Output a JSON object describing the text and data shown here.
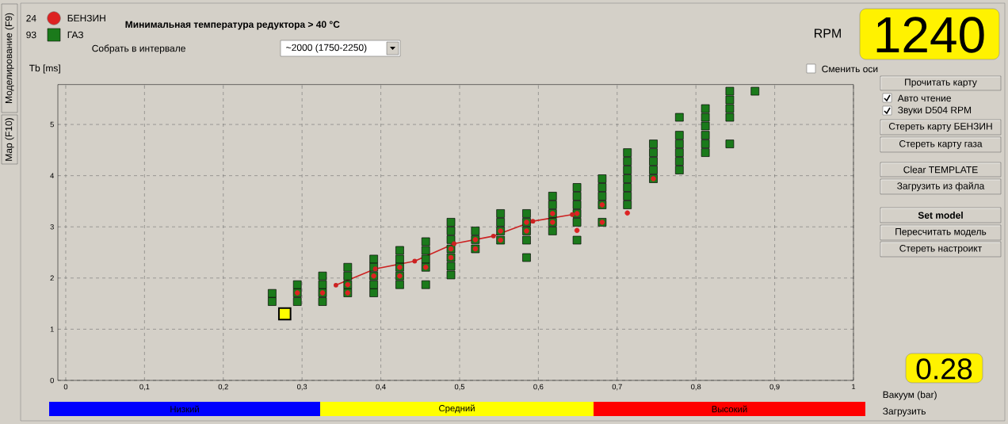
{
  "chart_data": {
    "type": "scatter",
    "title": "Минимальная температура редуктора > 40 °C",
    "ylabel": "Tb [ms]",
    "xlim": [
      -0.01,
      1.0
    ],
    "ylim": [
      0,
      5.78
    ],
    "xticks": [
      0,
      {
        "value": 0.1,
        "label": "0,1"
      },
      {
        "value": 0.2,
        "label": "0,2"
      },
      {
        "value": 0.3,
        "label": "0,3"
      },
      {
        "value": 0.4,
        "label": "0,4"
      },
      {
        "value": 0.5,
        "label": "0,5"
      },
      {
        "value": 0.6,
        "label": "0,6"
      },
      {
        "value": 0.7,
        "label": "0,7"
      },
      {
        "value": 0.8,
        "label": "0,8"
      },
      {
        "value": 0.9,
        "label": "0,9"
      },
      1
    ],
    "yticks": [
      0,
      1,
      2,
      3,
      4,
      5
    ],
    "grid": true,
    "legend": "top left",
    "series": [
      {
        "name": "БЕНЗИН",
        "marker": "circle",
        "color": "#dd2222",
        "x": [
          0.294,
          0.326,
          0.358,
          0.358,
          0.391,
          0.424,
          0.424,
          0.457,
          0.489,
          0.489,
          0.52,
          0.52,
          0.552,
          0.552,
          0.585,
          0.585,
          0.618,
          0.618,
          0.649,
          0.649,
          0.681,
          0.681,
          0.713,
          0.746
        ],
        "values": [
          1.71,
          1.71,
          1.87,
          1.71,
          2.04,
          2.21,
          2.04,
          2.21,
          2.57,
          2.4,
          2.75,
          2.57,
          2.92,
          2.74,
          3.09,
          2.92,
          3.26,
          3.09,
          3.26,
          2.93,
          3.43,
          3.09,
          3.27,
          3.94
        ]
      },
      {
        "name": "ГАЗ",
        "marker": "square",
        "color": "#1b7a1b",
        "x": [
          0.262,
          0.262,
          0.294,
          0.294,
          0.294,
          0.326,
          0.326,
          0.326,
          0.326,
          0.358,
          0.358,
          0.358,
          0.358,
          0.391,
          0.391,
          0.391,
          0.391,
          0.391,
          0.424,
          0.424,
          0.424,
          0.424,
          0.424,
          0.457,
          0.457,
          0.457,
          0.457,
          0.457,
          0.489,
          0.489,
          0.489,
          0.489,
          0.489,
          0.489,
          0.489,
          0.52,
          0.52,
          0.52,
          0.552,
          0.552,
          0.552,
          0.552,
          0.585,
          0.585,
          0.585,
          0.585,
          0.585,
          0.618,
          0.618,
          0.618,
          0.618,
          0.618,
          0.649,
          0.649,
          0.649,
          0.649,
          0.649,
          0.649,
          0.681,
          0.681,
          0.681,
          0.681,
          0.681,
          0.713,
          0.713,
          0.713,
          0.713,
          0.713,
          0.713,
          0.713,
          0.746,
          0.746,
          0.746,
          0.746,
          0.746,
          0.779,
          0.779,
          0.779,
          0.779,
          0.779,
          0.779,
          0.812,
          0.812,
          0.812,
          0.812,
          0.812,
          0.812,
          0.843,
          0.843,
          0.843,
          0.843,
          0.843,
          0.875
        ],
        "values": [
          1.7,
          1.54,
          1.87,
          1.71,
          1.54,
          2.04,
          1.87,
          1.71,
          1.54,
          2.21,
          2.04,
          1.87,
          1.71,
          2.37,
          2.21,
          2.04,
          1.87,
          1.71,
          2.54,
          2.37,
          2.21,
          2.04,
          1.87,
          2.71,
          2.54,
          2.37,
          2.21,
          1.87,
          3.09,
          2.92,
          2.75,
          2.57,
          2.4,
          2.23,
          2.06,
          2.92,
          2.75,
          2.57,
          3.26,
          3.09,
          2.92,
          2.74,
          3.26,
          3.09,
          2.92,
          2.74,
          2.4,
          3.6,
          3.43,
          3.26,
          3.09,
          2.92,
          3.77,
          3.6,
          3.43,
          3.26,
          3.09,
          2.74,
          3.94,
          3.77,
          3.6,
          3.43,
          3.09,
          4.45,
          4.28,
          4.11,
          3.94,
          3.77,
          3.6,
          3.43,
          4.62,
          4.45,
          4.28,
          4.11,
          3.94,
          5.14,
          4.79,
          4.62,
          4.45,
          4.28,
          4.11,
          5.31,
          5.14,
          4.97,
          4.79,
          4.62,
          4.45,
          5.65,
          5.48,
          5.31,
          5.14,
          4.62,
          5.65
        ]
      },
      {
        "type": "line",
        "marker": "circle",
        "color": "#cc2222",
        "x": [
          0.343,
          0.393,
          0.443,
          0.493,
          0.543,
          0.593,
          0.643
        ],
        "values": [
          1.86,
          2.18,
          2.33,
          2.67,
          2.82,
          3.11,
          3.24
        ]
      },
      {
        "marker": "square",
        "color": "#ffff00",
        "x": [
          0.278
        ],
        "values": [
          1.3
        ]
      }
    ],
    "annotations": [
      "24",
      "93",
      "Собрать в интервале",
      "~2000 (1750-2250)",
      "Сменить оси",
      "RPM",
      "1240",
      "Прочитать карту",
      "Авто чтение",
      "Звуки D504 RPM",
      "Стереть карту БЕНЗИН",
      "Стереть карту газа",
      "Clear TEMPLATE",
      "Загрузить из файла",
      "Set model",
      "Пересчитать модель",
      "Стереть настроикт",
      "0.28",
      "Вакуум (bar)",
      "Загрузить",
      "Моделирование (F9)",
      "Map (F10)",
      "Низкий",
      "Средний",
      "Высокий"
    ]
  }
}
